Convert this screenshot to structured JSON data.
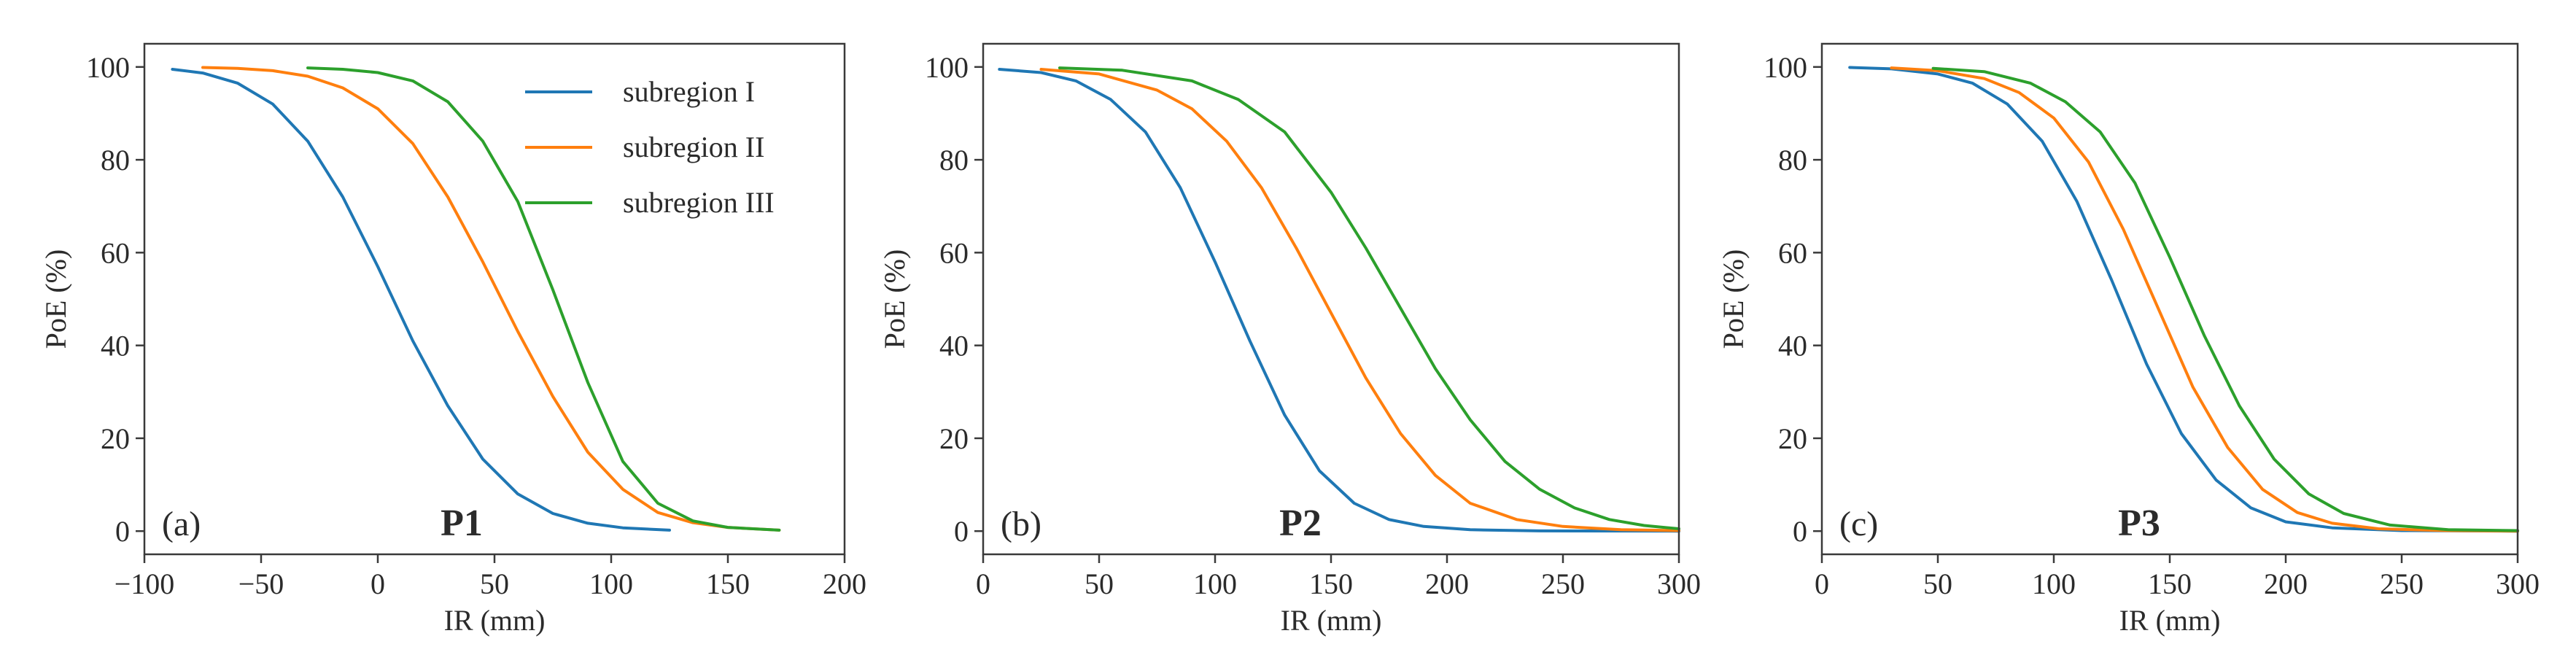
{
  "chart_data": [
    {
      "type": "line",
      "panel_tag": "(a)",
      "panel_name": "P1",
      "xlabel": "IR (mm)",
      "ylabel": "PoE (%)",
      "xlim": [
        -100,
        200
      ],
      "ylim": [
        -5,
        105
      ],
      "xticks": [
        -100,
        -50,
        0,
        50,
        100,
        150,
        200
      ],
      "xtick_labels": [
        "−100",
        "−50",
        "0",
        "50",
        "100",
        "150",
        "200"
      ],
      "yticks": [
        0,
        20,
        40,
        60,
        80,
        100
      ],
      "ytick_labels": [
        "0",
        "20",
        "40",
        "60",
        "80",
        "100"
      ],
      "legend": {
        "placement": "top-right",
        "entries": [
          "subregion I",
          "subregion II",
          "subregion III"
        ]
      },
      "series": [
        {
          "name": "subregion I",
          "color": "#1f77b4",
          "x": [
            -88,
            -75,
            -60,
            -45,
            -30,
            -15,
            0,
            15,
            30,
            45,
            60,
            75,
            90,
            105,
            125
          ],
          "y": [
            99.5,
            98.7,
            96.5,
            92,
            84,
            72,
            57,
            41,
            27,
            15.5,
            8,
            3.8,
            1.7,
            0.7,
            0.2
          ]
        },
        {
          "name": "subregion II",
          "color": "#ff7f0e",
          "x": [
            -75,
            -60,
            -45,
            -30,
            -15,
            0,
            15,
            30,
            45,
            60,
            75,
            90,
            105,
            120,
            135,
            150,
            172
          ],
          "y": [
            99.9,
            99.7,
            99.2,
            98,
            95.5,
            91,
            83.5,
            72,
            58,
            43,
            29,
            17,
            9,
            4,
            1.8,
            0.8,
            0.2
          ]
        },
        {
          "name": "subregion III",
          "color": "#2ca02c",
          "x": [
            -30,
            -15,
            0,
            15,
            30,
            45,
            60,
            75,
            90,
            105,
            120,
            135,
            150,
            172
          ],
          "y": [
            99.8,
            99.5,
            98.8,
            97,
            92.5,
            84,
            71,
            52,
            32,
            15,
            6,
            2.2,
            0.8,
            0.2
          ]
        }
      ]
    },
    {
      "type": "line",
      "panel_tag": "(b)",
      "panel_name": "P2",
      "xlabel": "IR (mm)",
      "ylabel": "PoE (%)",
      "xlim": [
        0,
        300
      ],
      "ylim": [
        -5,
        105
      ],
      "xticks": [
        0,
        50,
        100,
        150,
        200,
        250,
        300
      ],
      "xtick_labels": [
        "0",
        "50",
        "100",
        "150",
        "200",
        "250",
        "300"
      ],
      "yticks": [
        0,
        20,
        40,
        60,
        80,
        100
      ],
      "ytick_labels": [
        "0",
        "20",
        "40",
        "60",
        "80",
        "100"
      ],
      "series": [
        {
          "name": "subregion I",
          "color": "#1f77b4",
          "x": [
            7,
            25,
            40,
            55,
            70,
            85,
            100,
            115,
            130,
            145,
            160,
            175,
            190,
            210,
            240,
            300
          ],
          "y": [
            99.5,
            98.8,
            97,
            93,
            86,
            74,
            58,
            41,
            25,
            13,
            6,
            2.5,
            1,
            0.3,
            0.05,
            0
          ]
        },
        {
          "name": "subregion II",
          "color": "#ff7f0e",
          "x": [
            25,
            50,
            75,
            90,
            105,
            120,
            135,
            150,
            165,
            180,
            195,
            210,
            230,
            250,
            275,
            300
          ],
          "y": [
            99.5,
            98.5,
            95,
            91,
            84,
            74,
            61,
            47,
            33,
            21,
            12,
            6,
            2.5,
            1,
            0.3,
            0.1
          ]
        },
        {
          "name": "subregion III",
          "color": "#2ca02c",
          "x": [
            33,
            60,
            90,
            110,
            130,
            150,
            165,
            180,
            195,
            210,
            225,
            240,
            255,
            270,
            285,
            300
          ],
          "y": [
            99.8,
            99.3,
            97,
            93,
            86,
            73,
            61,
            48,
            35,
            24,
            15,
            9,
            5,
            2.5,
            1.2,
            0.5
          ]
        }
      ]
    },
    {
      "type": "line",
      "panel_tag": "(c)",
      "panel_name": "P3",
      "xlabel": "IR (mm)",
      "ylabel": "PoE (%)",
      "xlim": [
        0,
        300
      ],
      "ylim": [
        -5,
        105
      ],
      "xticks": [
        0,
        50,
        100,
        150,
        200,
        250,
        300
      ],
      "xtick_labels": [
        "0",
        "50",
        "100",
        "150",
        "200",
        "250",
        "300"
      ],
      "yticks": [
        0,
        20,
        40,
        60,
        80,
        100
      ],
      "ytick_labels": [
        "0",
        "20",
        "40",
        "60",
        "80",
        "100"
      ],
      "series": [
        {
          "name": "subregion I",
          "color": "#1f77b4",
          "x": [
            12,
            30,
            50,
            65,
            80,
            95,
            110,
            125,
            140,
            155,
            170,
            185,
            200,
            220,
            250,
            300
          ],
          "y": [
            99.9,
            99.6,
            98.5,
            96.5,
            92,
            84,
            71,
            54,
            36,
            21,
            11,
            5,
            2,
            0.7,
            0.1,
            0
          ]
        },
        {
          "name": "subregion II",
          "color": "#ff7f0e",
          "x": [
            30,
            50,
            70,
            85,
            100,
            115,
            130,
            145,
            160,
            175,
            190,
            205,
            220,
            240,
            270,
            300
          ],
          "y": [
            99.8,
            99.2,
            97.5,
            94.5,
            89,
            79.5,
            65,
            48,
            31,
            18,
            9,
            4,
            1.7,
            0.5,
            0.1,
            0
          ]
        },
        {
          "name": "subregion III",
          "color": "#2ca02c",
          "x": [
            48,
            70,
            90,
            105,
            120,
            135,
            150,
            165,
            180,
            195,
            210,
            225,
            245,
            270,
            300
          ],
          "y": [
            99.7,
            99,
            96.5,
            92.5,
            86,
            75,
            59,
            42,
            27,
            15.5,
            8,
            3.8,
            1.3,
            0.3,
            0.1
          ]
        }
      ]
    }
  ]
}
